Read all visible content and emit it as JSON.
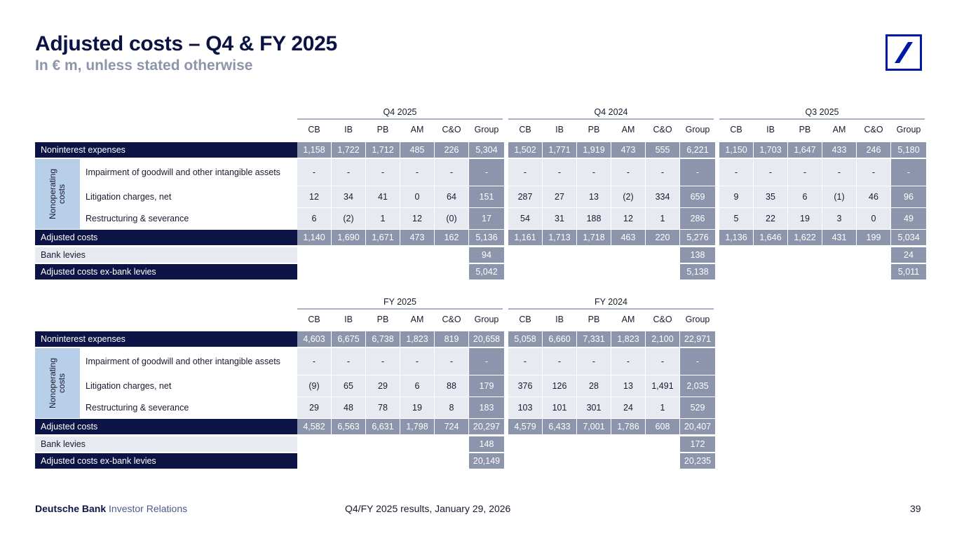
{
  "page": {
    "title": "Adjusted costs – Q4 & FY 2025",
    "subtitle": "In € m, unless stated otherwise"
  },
  "footer": {
    "brand": "Deutsche Bank",
    "brand_suffix": "Investor Relations",
    "center": "Q4/FY 2025 results, January 29, 2026",
    "page_number": "39"
  },
  "columns": [
    "CB",
    "IB",
    "PB",
    "AM",
    "C&O",
    "Group"
  ],
  "side_label": "Nonoperating costs",
  "tables": [
    {
      "groups": [
        {
          "label": "Q4 2025",
          "rows": [
            [
              "1,158",
              "1,722",
              "1,712",
              "485",
              "226",
              "5,304"
            ],
            [
              "-",
              "-",
              "-",
              "-",
              "-",
              "-"
            ],
            [
              "12",
              "34",
              "41",
              "0",
              "64",
              "151"
            ],
            [
              "6",
              "(2)",
              "1",
              "12",
              "(0)",
              "17"
            ],
            [
              "1,140",
              "1,690",
              "1,671",
              "473",
              "162",
              "5,136"
            ],
            [
              "",
              "",
              "",
              "",
              "",
              "94"
            ],
            [
              "",
              "",
              "",
              "",
              "",
              "5,042"
            ]
          ]
        },
        {
          "label": "Q4 2024",
          "rows": [
            [
              "1,502",
              "1,771",
              "1,919",
              "473",
              "555",
              "6,221"
            ],
            [
              "-",
              "-",
              "-",
              "-",
              "-",
              "-"
            ],
            [
              "287",
              "27",
              "13",
              "(2)",
              "334",
              "659"
            ],
            [
              "54",
              "31",
              "188",
              "12",
              "1",
              "286"
            ],
            [
              "1,161",
              "1,713",
              "1,718",
              "463",
              "220",
              "5,276"
            ],
            [
              "",
              "",
              "",
              "",
              "",
              "138"
            ],
            [
              "",
              "",
              "",
              "",
              "",
              "5,138"
            ]
          ]
        },
        {
          "label": "Q3 2025",
          "rows": [
            [
              "1,150",
              "1,703",
              "1,647",
              "433",
              "246",
              "5,180"
            ],
            [
              "-",
              "-",
              "-",
              "-",
              "-",
              "-"
            ],
            [
              "9",
              "35",
              "6",
              "(1)",
              "46",
              "96"
            ],
            [
              "5",
              "22",
              "19",
              "3",
              "0",
              "49"
            ],
            [
              "1,136",
              "1,646",
              "1,622",
              "431",
              "199",
              "5,034"
            ],
            [
              "",
              "",
              "",
              "",
              "",
              "24"
            ],
            [
              "",
              "",
              "",
              "",
              "",
              "5,011"
            ]
          ]
        }
      ],
      "row_labels": [
        "Noninterest expenses",
        "Impairment of goodwill and other intangible assets",
        "Litigation charges, net",
        "Restructuring & severance",
        "Adjusted costs",
        "Bank levies",
        "Adjusted costs ex-bank levies"
      ]
    },
    {
      "groups": [
        {
          "label": "FY 2025",
          "rows": [
            [
              "4,603",
              "6,675",
              "6,738",
              "1,823",
              "819",
              "20,658"
            ],
            [
              "-",
              "-",
              "-",
              "-",
              "-",
              "-"
            ],
            [
              "(9)",
              "65",
              "29",
              "6",
              "88",
              "179"
            ],
            [
              "29",
              "48",
              "78",
              "19",
              "8",
              "183"
            ],
            [
              "4,582",
              "6,563",
              "6,631",
              "1,798",
              "724",
              "20,297"
            ],
            [
              "",
              "",
              "",
              "",
              "",
              "148"
            ],
            [
              "",
              "",
              "",
              "",
              "",
              "20,149"
            ]
          ]
        },
        {
          "label": "FY 2024",
          "rows": [
            [
              "5,058",
              "6,660",
              "7,331",
              "1,823",
              "2,100",
              "22,971"
            ],
            [
              "-",
              "-",
              "-",
              "-",
              "-",
              "-"
            ],
            [
              "376",
              "126",
              "28",
              "13",
              "1,491",
              "2,035"
            ],
            [
              "103",
              "101",
              "301",
              "24",
              "1",
              "529"
            ],
            [
              "4,579",
              "6,433",
              "7,001",
              "1,786",
              "608",
              "20,407"
            ],
            [
              "",
              "",
              "",
              "",
              "",
              "172"
            ],
            [
              "",
              "",
              "",
              "",
              "",
              "20,235"
            ]
          ]
        }
      ],
      "row_labels": [
        "Noninterest expenses",
        "Impairment of goodwill and other intangible assets",
        "Litigation charges, net",
        "Restructuring & severance",
        "Adjusted costs",
        "Bank levies",
        "Adjusted costs ex-bank levies"
      ]
    }
  ]
}
